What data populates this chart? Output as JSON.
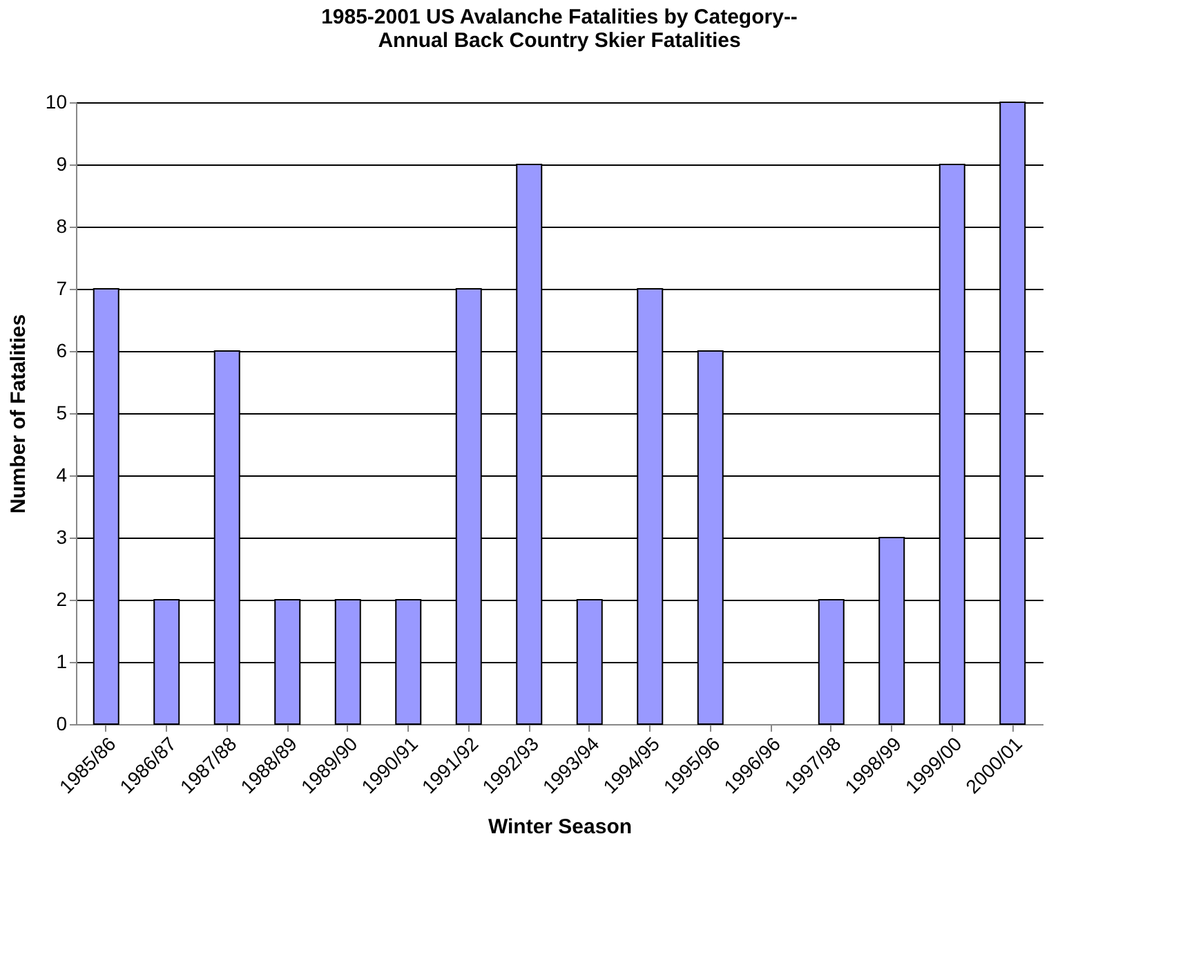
{
  "chart_data": {
    "type": "bar",
    "title": [
      "1985-2001 US Avalanche Fatalities by Category--",
      "Annual Back Country Skier Fatalities"
    ],
    "xlabel": "Winter Season",
    "ylabel": "Number of Fatalities",
    "categories": [
      "1985/86",
      "1986/87",
      "1987/88",
      "1988/89",
      "1989/90",
      "1990/91",
      "1991/92",
      "1992/93",
      "1993/94",
      "1994/95",
      "1995/96",
      "1996/96",
      "1997/98",
      "1998/99",
      "1999/00",
      "2000/01"
    ],
    "values": [
      7,
      2,
      6,
      2,
      2,
      2,
      7,
      9,
      2,
      7,
      6,
      0,
      2,
      3,
      9,
      10
    ],
    "color": "#9999ff",
    "ylim": [
      0,
      10
    ],
    "yticks": [
      0,
      1,
      2,
      3,
      4,
      5,
      6,
      7,
      8,
      9,
      10
    ],
    "grid": "y"
  }
}
